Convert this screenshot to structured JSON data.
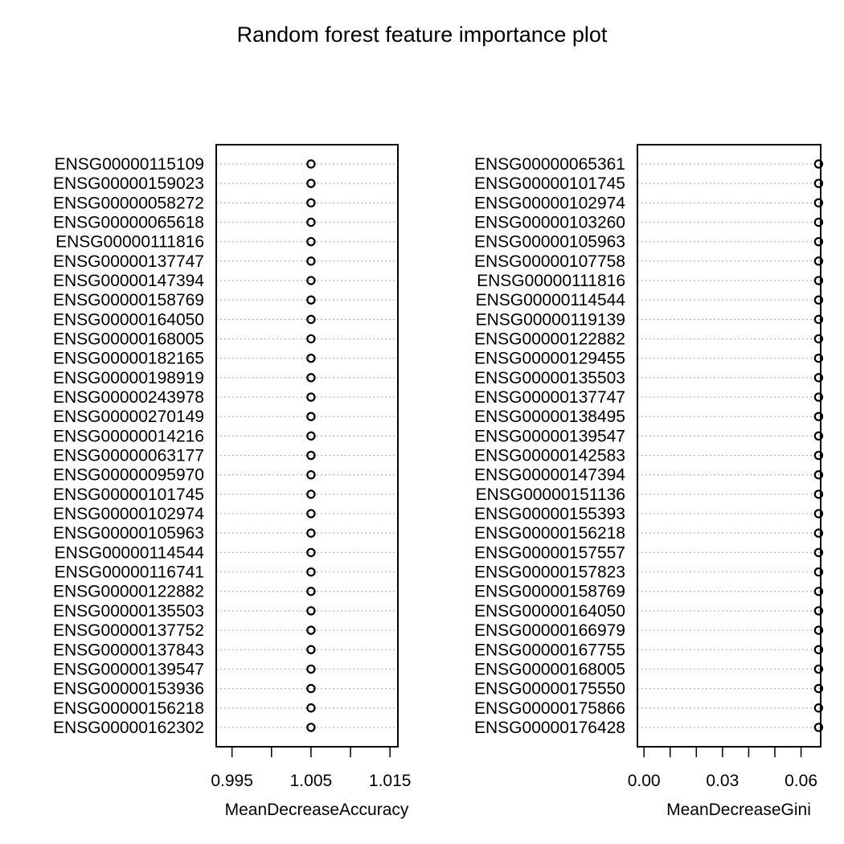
{
  "title": "Random forest feature importance plot",
  "chart_data": [
    {
      "type": "scatter",
      "xlabel": "MeanDecreaseAccuracy",
      "ylabel": "",
      "xlim": [
        0.993,
        1.016
      ],
      "xticks": [
        0.995,
        1.0,
        1.005,
        1.01,
        1.015
      ],
      "xtick_labels": [
        "0.995",
        "",
        "1.005",
        "",
        "1.015"
      ],
      "grid": "dotted horizontal",
      "categories": [
        "ENSG00000115109",
        "ENSG00000159023",
        "ENSG00000058272",
        "ENSG00000065618",
        "ENSG00000111816",
        "ENSG00000137747",
        "ENSG00000147394",
        "ENSG00000158769",
        "ENSG00000164050",
        "ENSG00000168005",
        "ENSG00000182165",
        "ENSG00000198919",
        "ENSG00000243978",
        "ENSG00000270149",
        "ENSG00000014216",
        "ENSG00000063177",
        "ENSG00000095970",
        "ENSG00000101745",
        "ENSG00000102974",
        "ENSG00000105963",
        "ENSG00000114544",
        "ENSG00000116741",
        "ENSG00000122882",
        "ENSG00000135503",
        "ENSG00000137752",
        "ENSG00000137843",
        "ENSG00000139547",
        "ENSG00000153936",
        "ENSG00000156218",
        "ENSG00000162302"
      ],
      "values": [
        1.005,
        1.005,
        1.005,
        1.005,
        1.005,
        1.005,
        1.005,
        1.005,
        1.005,
        1.005,
        1.005,
        1.005,
        1.005,
        1.005,
        1.005,
        1.005,
        1.005,
        1.005,
        1.005,
        1.005,
        1.005,
        1.005,
        1.005,
        1.005,
        1.005,
        1.005,
        1.005,
        1.005,
        1.005,
        1.005
      ]
    },
    {
      "type": "scatter",
      "xlabel": "MeanDecreaseGini",
      "ylabel": "",
      "xlim": [
        -0.0025,
        0.0675
      ],
      "xticks": [
        0.0,
        0.01,
        0.02,
        0.03,
        0.04,
        0.05,
        0.06
      ],
      "xtick_labels": [
        "0.00",
        "",
        "",
        "0.03",
        "",
        "",
        "0.06"
      ],
      "grid": "dotted horizontal",
      "categories": [
        "ENSG00000065361",
        "ENSG00000101745",
        "ENSG00000102974",
        "ENSG00000103260",
        "ENSG00000105963",
        "ENSG00000107758",
        "ENSG00000111816",
        "ENSG00000114544",
        "ENSG00000119139",
        "ENSG00000122882",
        "ENSG00000129455",
        "ENSG00000135503",
        "ENSG00000137747",
        "ENSG00000138495",
        "ENSG00000139547",
        "ENSG00000142583",
        "ENSG00000147394",
        "ENSG00000151136",
        "ENSG00000155393",
        "ENSG00000156218",
        "ENSG00000157557",
        "ENSG00000157823",
        "ENSG00000158769",
        "ENSG00000164050",
        "ENSG00000166979",
        "ENSG00000167755",
        "ENSG00000168005",
        "ENSG00000175550",
        "ENSG00000175866",
        "ENSG00000176428"
      ],
      "values": [
        0.0667,
        0.0667,
        0.0667,
        0.0667,
        0.0667,
        0.0667,
        0.0667,
        0.0667,
        0.0667,
        0.0667,
        0.0667,
        0.0667,
        0.0667,
        0.0667,
        0.0667,
        0.0667,
        0.0667,
        0.0667,
        0.0667,
        0.0667,
        0.0667,
        0.0667,
        0.0667,
        0.0667,
        0.0667,
        0.0667,
        0.0667,
        0.0667,
        0.0667,
        0.0667
      ]
    }
  ]
}
